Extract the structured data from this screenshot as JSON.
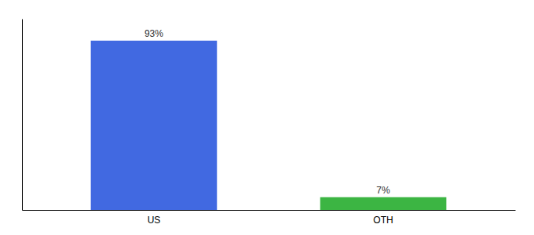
{
  "chart_data": {
    "type": "bar",
    "categories": [
      "US",
      "OTH"
    ],
    "values": [
      93,
      7
    ],
    "value_labels": [
      "93%",
      "7%"
    ],
    "colors": [
      "#4169e1",
      "#3cb543"
    ],
    "ylim": [
      0,
      105
    ],
    "data_labels": true,
    "tick_labels": "x"
  }
}
